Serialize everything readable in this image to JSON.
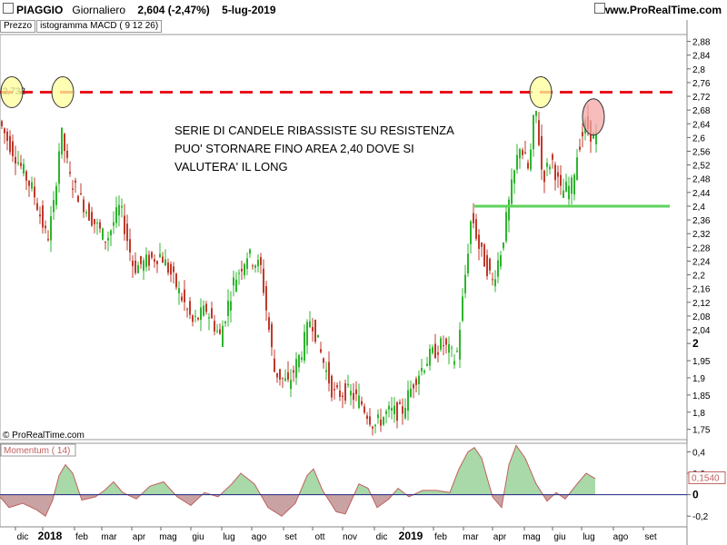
{
  "header": {
    "ticker": "PIAGGIO",
    "period": "Giornaliero",
    "last_price": "2,604",
    "change": "(-2,47%)",
    "date": "5-lug-2019",
    "site": "www.ProRealTime.com"
  },
  "tabs": [
    "Prezzo",
    "istogramma MACD ( 9 12 26)"
  ],
  "copyright": "© ProRealTime.com",
  "chart_data": [
    {
      "type": "candlestick",
      "price_axis": {
        "ylim": [
          1.72,
          2.9
        ],
        "ticks": [
          {
            "value": 2.88,
            "label": "2,88"
          },
          {
            "value": 2.84,
            "label": "2,84"
          },
          {
            "value": 2.8,
            "label": "2,8"
          },
          {
            "value": 2.76,
            "label": "2,76"
          },
          {
            "value": 2.72,
            "label": "2,72"
          },
          {
            "value": 2.68,
            "label": "2,68"
          },
          {
            "value": 2.64,
            "label": "2,64"
          },
          {
            "value": 2.6,
            "label": "2,6"
          },
          {
            "value": 2.56,
            "label": "2,56"
          },
          {
            "value": 2.52,
            "label": "2,52"
          },
          {
            "value": 2.48,
            "label": "2,48"
          },
          {
            "value": 2.44,
            "label": "2,44"
          },
          {
            "value": 2.4,
            "label": "2,4"
          },
          {
            "value": 2.36,
            "label": "2,36"
          },
          {
            "value": 2.32,
            "label": "2,32"
          },
          {
            "value": 2.28,
            "label": "2,28"
          },
          {
            "value": 2.24,
            "label": "2,24"
          },
          {
            "value": 2.2,
            "label": "2,2"
          },
          {
            "value": 2.16,
            "label": "2,16"
          },
          {
            "value": 2.12,
            "label": "2,12"
          },
          {
            "value": 2.08,
            "label": "2,08"
          },
          {
            "value": 2.04,
            "label": "2,04"
          },
          {
            "value": 2.0,
            "label": "2",
            "bold": true
          },
          {
            "value": 1.95,
            "label": "1,95"
          },
          {
            "value": 1.9,
            "label": "1,9"
          },
          {
            "value": 1.85,
            "label": "1,85"
          },
          {
            "value": 1.8,
            "label": "1,8"
          },
          {
            "value": 1.75,
            "label": "1,75"
          }
        ]
      },
      "price_path": [
        [
          0,
          2.66
        ],
        [
          10,
          2.6
        ],
        [
          25,
          2.52
        ],
        [
          40,
          2.44
        ],
        [
          55,
          2.3
        ],
        [
          62,
          2.4
        ],
        [
          70,
          2.62
        ],
        [
          80,
          2.48
        ],
        [
          100,
          2.38
        ],
        [
          120,
          2.3
        ],
        [
          135,
          2.4
        ],
        [
          150,
          2.22
        ],
        [
          165,
          2.24
        ],
        [
          180,
          2.26
        ],
        [
          195,
          2.18
        ],
        [
          215,
          2.06
        ],
        [
          230,
          2.1
        ],
        [
          245,
          2.02
        ],
        [
          260,
          2.18
        ],
        [
          275,
          2.26
        ],
        [
          290,
          2.22
        ],
        [
          305,
          1.92
        ],
        [
          320,
          1.88
        ],
        [
          335,
          1.98
        ],
        [
          345,
          2.08
        ],
        [
          355,
          1.98
        ],
        [
          370,
          1.85
        ],
        [
          385,
          1.86
        ],
        [
          400,
          1.83
        ],
        [
          415,
          1.76
        ],
        [
          430,
          1.8
        ],
        [
          445,
          1.8
        ],
        [
          460,
          1.9
        ],
        [
          475,
          1.96
        ],
        [
          490,
          2.0
        ],
        [
          505,
          1.95
        ],
        [
          515,
          2.2
        ],
        [
          522,
          2.38
        ],
        [
          530,
          2.28
        ],
        [
          545,
          2.18
        ],
        [
          555,
          2.28
        ],
        [
          565,
          2.44
        ],
        [
          575,
          2.58
        ],
        [
          585,
          2.5
        ],
        [
          592,
          2.7
        ],
        [
          600,
          2.48
        ],
        [
          610,
          2.54
        ],
        [
          620,
          2.44
        ],
        [
          632,
          2.46
        ],
        [
          640,
          2.58
        ],
        [
          648,
          2.64
        ],
        [
          655,
          2.6
        ]
      ],
      "marker_label": "2,732",
      "resistance": {
        "value": 2.732,
        "color": "#e8141e"
      },
      "support": {
        "value": 2.4,
        "color": "#5dd35d"
      },
      "annotation": [
        "SERIE DI CANDELE RIBASSISTE SU RESISTENZA",
        "PUO' STORNARE FINO AREA 2,40 DOVE SI",
        "VALUTERA' IL LONG"
      ],
      "colors": {
        "up": "#2db52d",
        "down": "#c0392b",
        "highlight_yellow": "#ffff99",
        "highlight_red": "#f4a6a6"
      }
    },
    {
      "type": "area",
      "title": "Momentum ( 14)",
      "ylim": [
        -0.3,
        0.48
      ],
      "ticks": [
        {
          "value": 0.4,
          "label": "0,4"
        },
        {
          "value": 0.2,
          "label": "0,2"
        },
        {
          "value": 0,
          "label": "0",
          "bold": true
        },
        {
          "value": -0.2,
          "label": "-0,2"
        }
      ],
      "last_value": "0,1540",
      "series": [
        [
          0,
          -0.02
        ],
        [
          10,
          -0.12
        ],
        [
          25,
          -0.08
        ],
        [
          40,
          -0.14
        ],
        [
          50,
          -0.2
        ],
        [
          58,
          -0.05
        ],
        [
          65,
          0.18
        ],
        [
          72,
          0.28
        ],
        [
          80,
          0.2
        ],
        [
          90,
          -0.05
        ],
        [
          105,
          -0.02
        ],
        [
          115,
          0.04
        ],
        [
          125,
          0.12
        ],
        [
          135,
          0.02
        ],
        [
          150,
          -0.04
        ],
        [
          165,
          0.08
        ],
        [
          180,
          0.12
        ],
        [
          195,
          -0.02
        ],
        [
          210,
          -0.1
        ],
        [
          225,
          0.02
        ],
        [
          240,
          -0.02
        ],
        [
          255,
          0.1
        ],
        [
          265,
          0.2
        ],
        [
          280,
          0.1
        ],
        [
          295,
          -0.12
        ],
        [
          310,
          -0.2
        ],
        [
          325,
          -0.08
        ],
        [
          338,
          0.18
        ],
        [
          345,
          0.24
        ],
        [
          355,
          0.04
        ],
        [
          370,
          -0.16
        ],
        [
          380,
          -0.18
        ],
        [
          395,
          0.1
        ],
        [
          405,
          0.06
        ],
        [
          415,
          -0.12
        ],
        [
          428,
          -0.04
        ],
        [
          438,
          0.06
        ],
        [
          450,
          -0.02
        ],
        [
          465,
          0.04
        ],
        [
          480,
          0.04
        ],
        [
          495,
          0.02
        ],
        [
          505,
          0.24
        ],
        [
          515,
          0.4
        ],
        [
          522,
          0.44
        ],
        [
          530,
          0.34
        ],
        [
          542,
          -0.02
        ],
        [
          552,
          -0.12
        ],
        [
          560,
          0.28
        ],
        [
          568,
          0.46
        ],
        [
          578,
          0.34
        ],
        [
          590,
          0.1
        ],
        [
          602,
          -0.06
        ],
        [
          612,
          0.02
        ],
        [
          622,
          -0.04
        ],
        [
          635,
          0.1
        ],
        [
          645,
          0.2
        ],
        [
          655,
          0.15
        ]
      ],
      "colors": {
        "pos_fill": "#a9d8a9",
        "neg_fill": "#c9a3a3",
        "line": "#c06060"
      }
    }
  ],
  "x_axis": {
    "labels": [
      {
        "text": "dic",
        "bold": false
      },
      {
        "text": "2018",
        "bold": true
      },
      {
        "text": "feb",
        "bold": false
      },
      {
        "text": "mar",
        "bold": false
      },
      {
        "text": "apr",
        "bold": false
      },
      {
        "text": "mag",
        "bold": false
      },
      {
        "text": "giu",
        "bold": false
      },
      {
        "text": "lug",
        "bold": false
      },
      {
        "text": "ago",
        "bold": false
      },
      {
        "text": "set",
        "bold": false
      },
      {
        "text": "ott",
        "bold": false
      },
      {
        "text": "nov",
        "bold": false
      },
      {
        "text": "dic",
        "bold": false
      },
      {
        "text": "2019",
        "bold": true
      },
      {
        "text": "feb",
        "bold": false
      },
      {
        "text": "mar",
        "bold": false
      },
      {
        "text": "apr",
        "bold": false
      },
      {
        "text": "mag",
        "bold": false
      },
      {
        "text": "giu",
        "bold": false
      },
      {
        "text": "lug",
        "bold": false
      },
      {
        "text": "ago",
        "bold": false
      },
      {
        "text": "set",
        "bold": false
      }
    ]
  }
}
